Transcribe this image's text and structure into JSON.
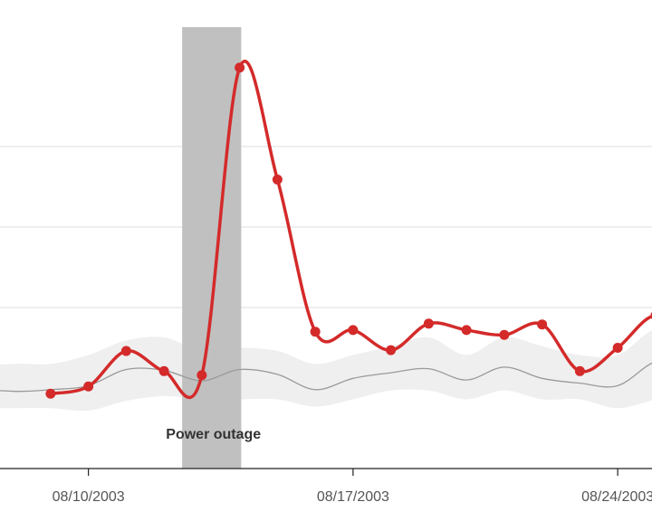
{
  "chart_data": {
    "type": "line",
    "title": "",
    "xlabel": "",
    "ylabel": "",
    "xlim": [
      "2003-08-06",
      "2003-08-27"
    ],
    "ylim": [
      0,
      6
    ],
    "grid": true,
    "x_ticks": [
      "08/10/2003",
      "08/17/2003",
      "08/24/2003"
    ],
    "colors": {
      "series": "#d42a2a",
      "baseline": "#9a9a9a",
      "band": "#efefef",
      "highlight": "#c0c0c0"
    },
    "highlight": {
      "label": "Power outage",
      "start": "2003-08-12 23:30",
      "end": "2003-08-14 13:00"
    },
    "series": [
      {
        "style": "bold-line-with-points",
        "x": [
          "2003-08-09",
          "2003-08-10",
          "2003-08-11",
          "2003-08-12",
          "2003-08-13",
          "2003-08-14",
          "2003-08-15",
          "2003-08-16",
          "2003-08-17",
          "2003-08-18",
          "2003-08-19",
          "2003-08-20",
          "2003-08-21",
          "2003-08-22",
          "2003-08-23",
          "2003-08-24",
          "2003-08-25",
          "2003-08-26"
        ],
        "y": [
          0.93,
          1.02,
          1.46,
          1.21,
          1.16,
          4.98,
          3.59,
          1.7,
          1.72,
          1.47,
          1.8,
          1.72,
          1.66,
          1.79,
          1.21,
          1.5,
          1.9,
          1.55
        ]
      },
      {
        "style": "thin-baseline",
        "x": [
          "2003-08-06",
          "2003-08-08",
          "2003-08-09",
          "2003-08-10",
          "2003-08-11",
          "2003-08-12",
          "2003-08-13",
          "2003-08-14",
          "2003-08-15",
          "2003-08-16",
          "2003-08-17",
          "2003-08-18",
          "2003-08-19",
          "2003-08-20",
          "2003-08-21",
          "2003-08-22",
          "2003-08-23",
          "2003-08-24",
          "2003-08-25",
          "2003-08-26",
          "2003-08-27"
        ],
        "y": [
          1.02,
          0.96,
          0.98,
          1.03,
          1.23,
          1.22,
          1.09,
          1.23,
          1.17,
          0.98,
          1.12,
          1.19,
          1.24,
          1.1,
          1.26,
          1.12,
          1.06,
          1.03,
          1.33,
          1.37,
          1.4
        ],
        "band_low": [
          0.75,
          0.75,
          0.75,
          0.72,
          0.84,
          0.9,
          0.86,
          0.86,
          0.86,
          0.77,
          0.86,
          0.97,
          0.97,
          0.86,
          0.97,
          0.86,
          0.86,
          0.75,
          0.86,
          0.97,
          1.08
        ],
        "band_high": [
          1.24,
          1.3,
          1.3,
          1.41,
          1.59,
          1.63,
          1.46,
          1.5,
          1.46,
          1.3,
          1.41,
          1.52,
          1.63,
          1.41,
          1.63,
          1.52,
          1.41,
          1.41,
          1.74,
          1.74,
          1.74
        ]
      }
    ]
  }
}
